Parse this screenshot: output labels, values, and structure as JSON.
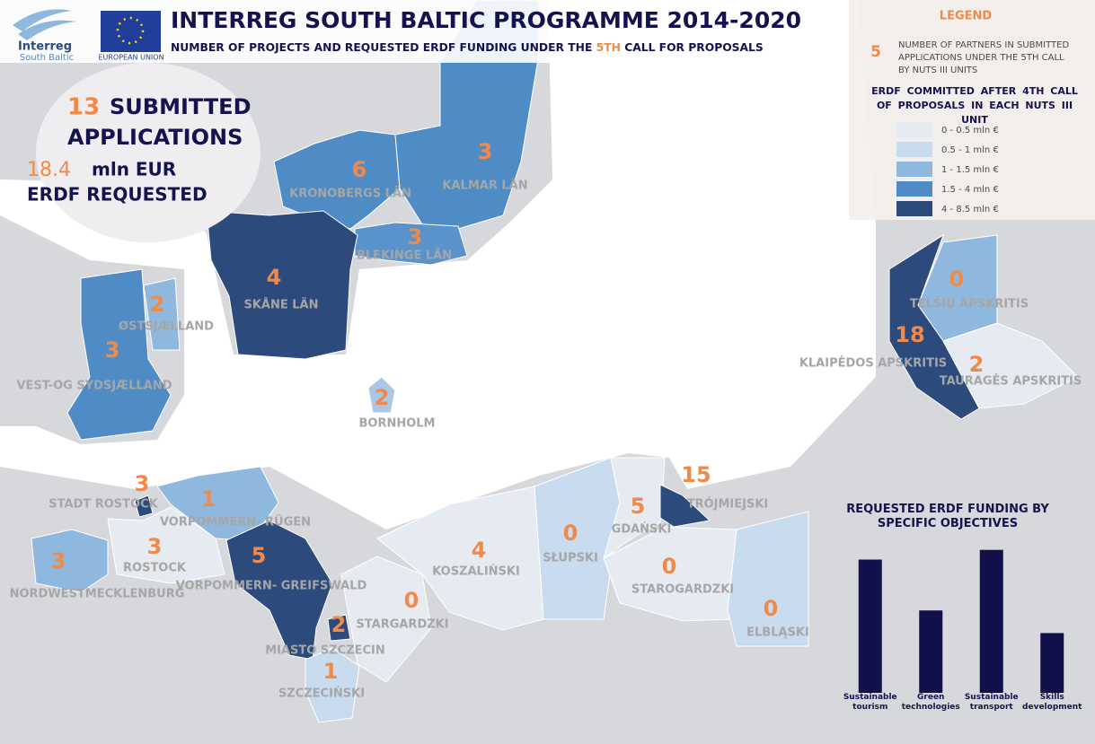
{
  "header": {
    "logo_text": "Interreg",
    "logo_subtext": "South Baltic",
    "eu_text": "EUROPEAN UNION",
    "title": "INTERREG SOUTH BALTIC PROGRAMME 2014-2020",
    "subtitle_before": "NUMBER OF PROJECTS AND REQUESTED ERDF FUNDING UNDER THE",
    "subtitle_highlight": "5TH",
    "subtitle_after": "CALL FOR PROPOSALS"
  },
  "summary": {
    "applications_number": "13",
    "applications_word": "SUBMITTED",
    "applications_label": "APPLICATIONS",
    "funding_number": "18.4",
    "funding_unit": "mln EUR",
    "funding_label": "ERDF REQUESTED"
  },
  "legend": {
    "title": "LEGEND",
    "partners_symbol": "5",
    "partners_text": "NUMBER OF PARTNERS IN SUBMITTED APPLICATIONS UNDER THE 5TH CALL BY NUTS III UNITS",
    "funding_title": "ERDF COMMITTED AFTER 4TH CALL OF PROPOSALS IN EACH NUTS III UNIT",
    "items": [
      {
        "label": "0 - 0.5 mln €",
        "color": "#e6ebf2"
      },
      {
        "label": "0.5 - 1 mln €",
        "color": "#c9dbee"
      },
      {
        "label": "1 - 1.5 mln €",
        "color": "#8fb8de"
      },
      {
        "label": "1.5 - 4 mln €",
        "color": "#4f8cc6"
      },
      {
        "label": "4 - 8.5 mln €",
        "color": "#2c4a7c"
      }
    ]
  },
  "regions": [
    {
      "name": "KRONOBERGS LÄN",
      "partners": "6",
      "color": "#4f8cc6"
    },
    {
      "name": "KALMAR LÄN",
      "partners": "3",
      "color": "#4f8cc6"
    },
    {
      "name": "BLEKINGE LÄN",
      "partners": "3",
      "color": "#5a93cb"
    },
    {
      "name": "SKÅNE LÄN",
      "partners": "4",
      "color": "#2c4a7c"
    },
    {
      "name": "ØSTSJÆLLAND",
      "partners": "2",
      "color": "#8fb8de"
    },
    {
      "name": "VEST-OG SYDSJÆLLAND",
      "partners": "3",
      "color": "#4f8cc6"
    },
    {
      "name": "BORNHOLM",
      "partners": "2",
      "color": "#a9c7e6"
    },
    {
      "name": "STADT ROSTOCK",
      "partners": "3",
      "color": "#2c4a7c"
    },
    {
      "name": "ROSTOCK",
      "partners": "3",
      "color": "#e6ebf2"
    },
    {
      "name": "VORPOMMERN- RÜGEN",
      "partners": "1",
      "color": "#8fb8de"
    },
    {
      "name": "NORDWESTMECKLENBURG",
      "partners": "3",
      "color": "#8fb8de"
    },
    {
      "name": "VORPOMMERN- GREIFSWALD",
      "partners": "5",
      "color": "#2c4a7c"
    },
    {
      "name": "MIASTO SZCZECIN",
      "partners": "2",
      "color": "#2c4a7c"
    },
    {
      "name": "SZCZECIŃSKI",
      "partners": "1",
      "color": "#c9dbee"
    },
    {
      "name": "STARGARDZKI",
      "partners": "0",
      "color": "#e6ebf2"
    },
    {
      "name": "KOSZALIŃSKI",
      "partners": "4",
      "color": "#e6ebf2"
    },
    {
      "name": "SŁUPSKI",
      "partners": "0",
      "color": "#c9dbee"
    },
    {
      "name": "GDAŃSKI",
      "partners": "5",
      "color": "#e6ebf2"
    },
    {
      "name": "TRÓJMIEJSKI",
      "partners": "15",
      "color": "#2c4a7c"
    },
    {
      "name": "STAROGARDZKI",
      "partners": "0",
      "color": "#e6ebf2"
    },
    {
      "name": "ELBLĄSKI",
      "partners": "0",
      "color": "#c9dbee"
    },
    {
      "name": "TELŠIŲ APSKRITIS",
      "partners": "0",
      "color": "#8fb8de"
    },
    {
      "name": "KLAIPĖDOS APSKRITIS",
      "partners": "18",
      "color": "#2c4a7c"
    },
    {
      "name": "TAURAGĖS APSKRITIS",
      "partners": "2",
      "color": "#e6ebf2"
    }
  ],
  "chart_data": {
    "type": "bar",
    "title": "REQUESTED ERDF FUNDING BY SPECIFIC OBJECTIVES",
    "categories": [
      "Sustainable tourism",
      "Green technologies",
      "Sustainable transport",
      "Skills development"
    ],
    "values": [
      165,
      102,
      177,
      74
    ],
    "color": "#12104a",
    "ylim": [
      0,
      200
    ]
  }
}
